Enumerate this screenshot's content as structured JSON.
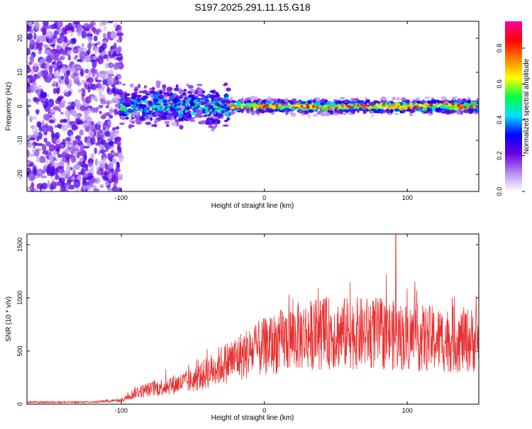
{
  "title": "S197.2025.291.11.15.G18",
  "chart_data": [
    {
      "type": "heatmap",
      "name": "spectrogram",
      "xlabel": "Height of straight line (km)",
      "ylabel": "Frequency (Hz)",
      "xlim": [
        -166,
        150
      ],
      "ylim": [
        -25,
        25
      ],
      "xticks": [
        -100,
        0,
        100
      ],
      "yticks": [
        -20,
        -10,
        0,
        10,
        20
      ],
      "colorbar": {
        "label": "Normalized spectral amplitude",
        "range": [
          0.0,
          0.95
        ],
        "ticks": [
          0.0,
          0.2,
          0.4,
          0.6,
          0.8
        ],
        "tick_labels": [
          "0.0",
          "0.2",
          "0.4",
          "0.6",
          "0.8"
        ],
        "colors": [
          "#ffffff",
          "#b08af0",
          "#6a00e0",
          "#0000ff",
          "#00e0ff",
          "#00ff40",
          "#ffff00",
          "#ff8000",
          "#ff0000",
          "#ff00a0"
        ]
      },
      "regions": [
        {
          "x": [
            -166,
            -100
          ],
          "description_level": "broadband noise",
          "freq_spread": [
            -25,
            25
          ],
          "amplitude": 0.1
        },
        {
          "x": [
            -100,
            -25
          ],
          "freq_center": 0,
          "freq_spread": [
            -8,
            8
          ],
          "amplitude": 0.3
        },
        {
          "x": [
            -25,
            150
          ],
          "freq_center": 0,
          "freq_spread": [
            -3,
            3
          ],
          "amplitude": 0.9
        }
      ]
    },
    {
      "type": "line",
      "name": "snr",
      "xlabel": "Height of straight line (km)",
      "ylabel": "SNR (10 * v/v)",
      "xlim": [
        -166,
        150
      ],
      "ylim": [
        0,
        1600
      ],
      "xticks": [
        -100,
        0,
        100
      ],
      "yticks": [
        0,
        500,
        1000,
        1500
      ],
      "color": "#e83030",
      "envelope": {
        "x": [
          -166,
          -120,
          -100,
          -90,
          -70,
          -50,
          -30,
          -15,
          0,
          20,
          40,
          60,
          80,
          100,
          120,
          150
        ],
        "y": [
          20,
          20,
          40,
          120,
          180,
          240,
          400,
          500,
          580,
          680,
          720,
          720,
          720,
          680,
          660,
          650
        ]
      },
      "peaks": [
        {
          "x": 92,
          "y": 1600
        },
        {
          "x": 60,
          "y": 1150
        },
        {
          "x": 105,
          "y": 1000
        },
        {
          "x": -40,
          "y": 520
        }
      ]
    }
  ]
}
